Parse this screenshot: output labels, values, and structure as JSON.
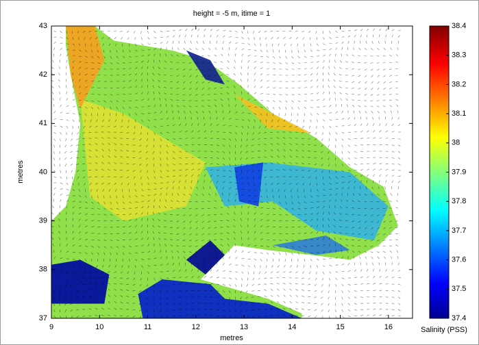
{
  "chart_data": {
    "type": "heatmap",
    "title": "height = -5 m, itime = 1",
    "xlabel": "metres",
    "ylabel": "metres",
    "colorbar_label": "Salinity (PSS)",
    "colormap": "jet",
    "xlim": [
      9,
      16.5
    ],
    "xticks": [
      9,
      10,
      11,
      12,
      13,
      14,
      15,
      16
    ],
    "ylim": [
      37,
      43
    ],
    "yticks": [
      37,
      38,
      39,
      40,
      41,
      42,
      43
    ],
    "clim": [
      37.4,
      38.4
    ],
    "cticks": [
      37.4,
      37.5,
      37.6,
      37.7,
      37.8,
      37.9,
      38,
      38.1,
      38.2,
      38.3,
      38.4
    ]
  }
}
